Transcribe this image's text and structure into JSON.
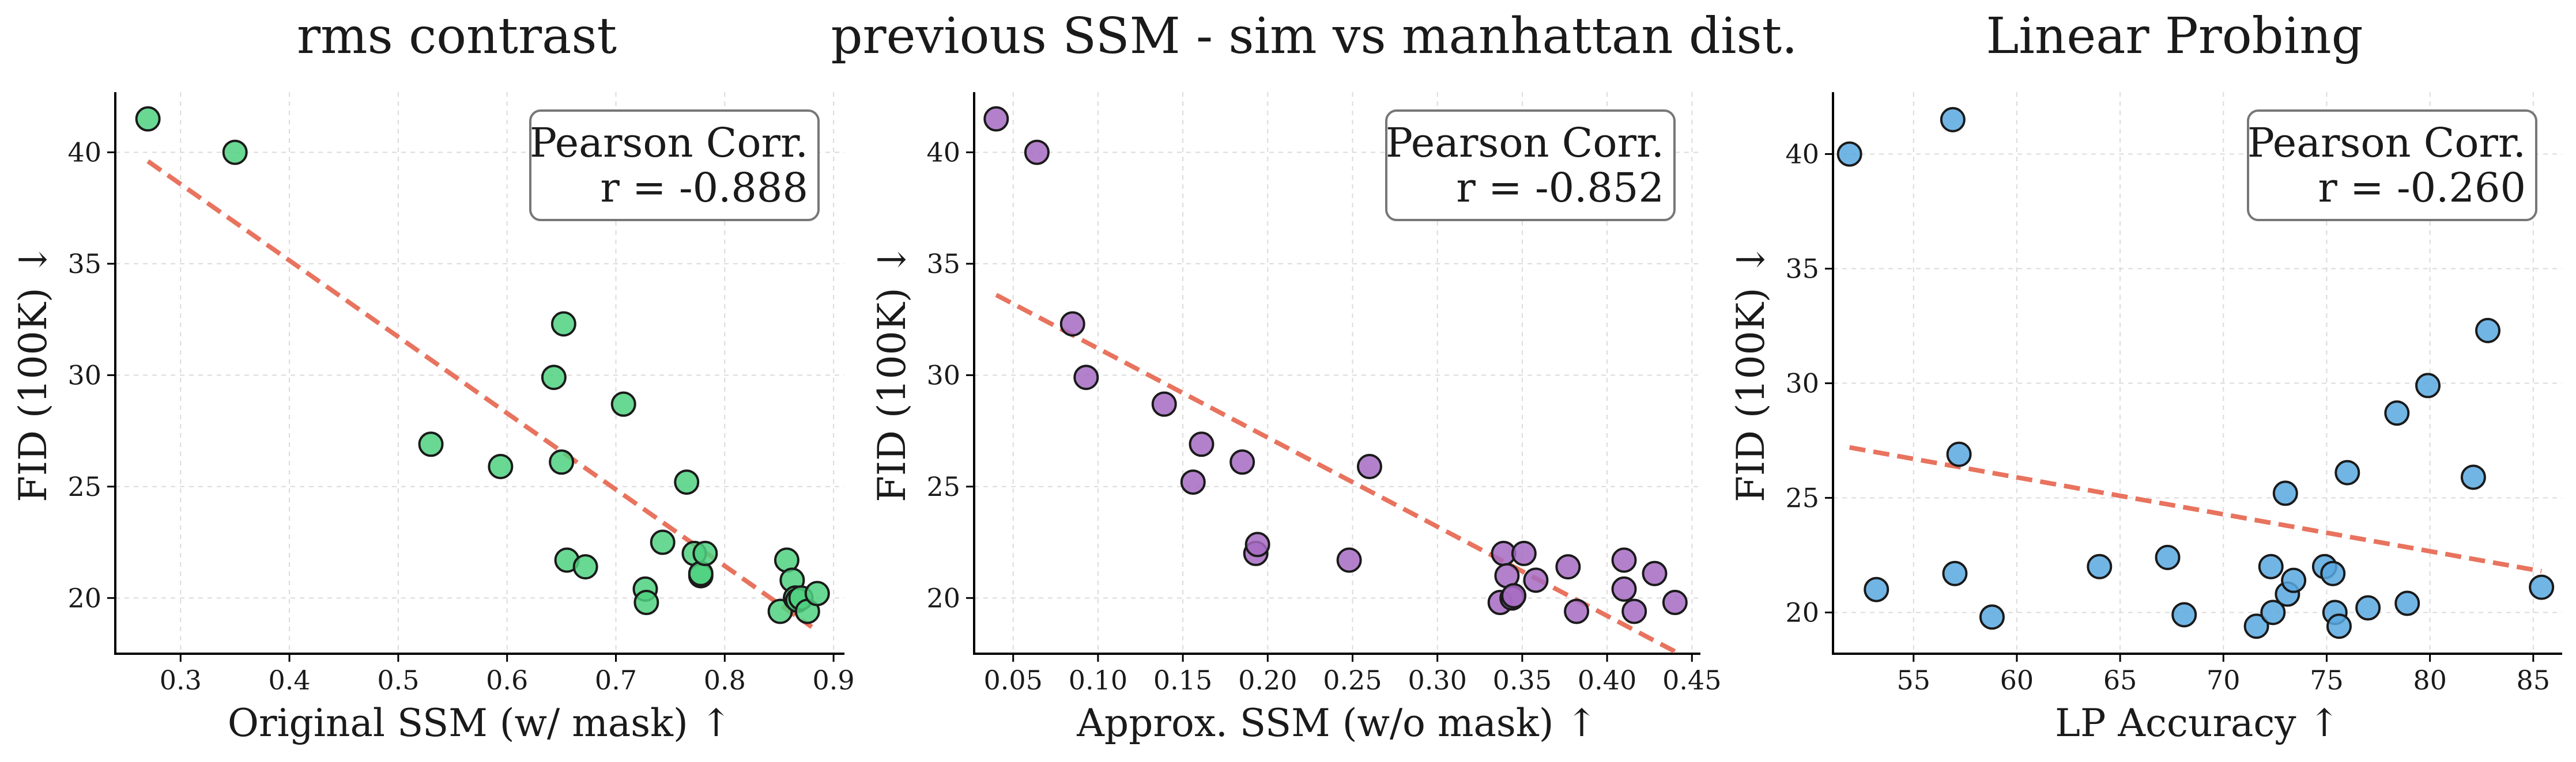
{
  "chart_data": [
    {
      "type": "scatter",
      "title": "rms contrast",
      "xlabel": "Original SSM (w/ mask) ↑",
      "ylabel": "FID (100K) ↓",
      "xlim": [
        0.24,
        0.91
      ],
      "ylim": [
        17.5,
        42.7
      ],
      "xticks": [
        0.3,
        0.4,
        0.5,
        0.6,
        0.7,
        0.8,
        0.9
      ],
      "xtick_labels": [
        "0.3",
        "0.4",
        "0.5",
        "0.6",
        "0.7",
        "0.8",
        "0.9"
      ],
      "yticks": [
        20,
        25,
        30,
        35,
        40
      ],
      "ytick_labels": [
        "20",
        "25",
        "30",
        "35",
        "40"
      ],
      "grid": true,
      "color": "#4fd180",
      "annotation": [
        "Pearson Corr.",
        "r = -0.888"
      ],
      "fit_line": {
        "x": [
          0.27,
          0.88
        ],
        "y": [
          39.6,
          18.7
        ]
      },
      "points": {
        "x": [
          0.27,
          0.35,
          0.53,
          0.594,
          0.643,
          0.65,
          0.652,
          0.655,
          0.672,
          0.707,
          0.727,
          0.728,
          0.743,
          0.765,
          0.772,
          0.778,
          0.778,
          0.782,
          0.851,
          0.857,
          0.862,
          0.865,
          0.867,
          0.87,
          0.876,
          0.885
        ],
        "y": [
          41.5,
          40.0,
          26.9,
          25.9,
          29.9,
          26.1,
          32.3,
          21.7,
          21.4,
          28.7,
          20.4,
          19.8,
          22.5,
          25.2,
          22.0,
          21.0,
          21.1,
          22.0,
          19.4,
          21.7,
          20.8,
          20.0,
          19.9,
          20.0,
          19.4,
          20.2
        ]
      }
    },
    {
      "type": "scatter",
      "title": "previous SSM - sim vs manhattan dist.",
      "xlabel": "Approx. SSM (w/o mask) ↑",
      "ylabel": "FID (100K) ↓",
      "xlim": [
        0.027,
        0.455
      ],
      "ylim": [
        17.5,
        42.7
      ],
      "xticks": [
        0.05,
        0.1,
        0.15,
        0.2,
        0.25,
        0.3,
        0.35,
        0.4,
        0.45
      ],
      "xtick_labels": [
        "0.05",
        "0.10",
        "0.15",
        "0.20",
        "0.25",
        "0.30",
        "0.35",
        "0.40",
        "0.45"
      ],
      "yticks": [
        20,
        25,
        30,
        35,
        40
      ],
      "ytick_labels": [
        "20",
        "25",
        "30",
        "35",
        "40"
      ],
      "grid": true,
      "color": "#a66bc2",
      "annotation": [
        "Pearson Corr.",
        "r = -0.852"
      ],
      "fit_line": {
        "x": [
          0.04,
          0.44
        ],
        "y": [
          33.6,
          17.6
        ]
      },
      "points": {
        "x": [
          0.04,
          0.064,
          0.085,
          0.093,
          0.139,
          0.156,
          0.161,
          0.185,
          0.193,
          0.194,
          0.248,
          0.26,
          0.337,
          0.339,
          0.341,
          0.344,
          0.345,
          0.351,
          0.358,
          0.377,
          0.382,
          0.41,
          0.41,
          0.416,
          0.428,
          0.44
        ],
        "y": [
          41.5,
          40.0,
          32.3,
          29.9,
          28.7,
          25.2,
          26.9,
          26.1,
          22.0,
          22.4,
          21.7,
          25.9,
          19.8,
          22.0,
          21.0,
          20.0,
          20.1,
          22.0,
          20.8,
          21.4,
          19.4,
          21.7,
          20.4,
          19.4,
          21.1,
          19.8
        ]
      }
    },
    {
      "type": "scatter",
      "title": "Linear Probing",
      "xlabel": "LP Accuracy ↑",
      "ylabel": "FID (100K) ↓",
      "xlim": [
        51.1,
        86.4
      ],
      "ylim": [
        18.2,
        42.7
      ],
      "xticks": [
        55,
        60,
        65,
        70,
        75,
        80,
        85
      ],
      "xtick_labels": [
        "55",
        "60",
        "65",
        "70",
        "75",
        "80",
        "85"
      ],
      "yticks": [
        20,
        25,
        30,
        35,
        40
      ],
      "ytick_labels": [
        "20",
        "25",
        "30",
        "35",
        "40"
      ],
      "grid": true,
      "color": "#58a8e0",
      "annotation": [
        "Pearson Corr.",
        "r = -0.260"
      ],
      "fit_line": {
        "x": [
          51.9,
          85.4
        ],
        "y": [
          27.2,
          21.8
        ]
      },
      "points": {
        "x": [
          51.9,
          53.2,
          56.9,
          57.0,
          57.2,
          58.8,
          64.0,
          67.3,
          68.1,
          71.6,
          72.3,
          72.4,
          73.0,
          73.1,
          73.4,
          74.9,
          75.3,
          75.4,
          75.6,
          76.0,
          77.0,
          78.4,
          78.9,
          79.9,
          82.1,
          82.8,
          85.4
        ],
        "y": [
          40.0,
          21.0,
          41.5,
          21.7,
          26.9,
          19.8,
          22.0,
          22.4,
          19.9,
          19.4,
          22.0,
          20.0,
          25.2,
          20.8,
          21.4,
          22.0,
          21.7,
          20.0,
          19.4,
          26.1,
          20.2,
          28.7,
          20.4,
          29.9,
          25.9,
          32.3,
          21.1
        ]
      }
    }
  ]
}
